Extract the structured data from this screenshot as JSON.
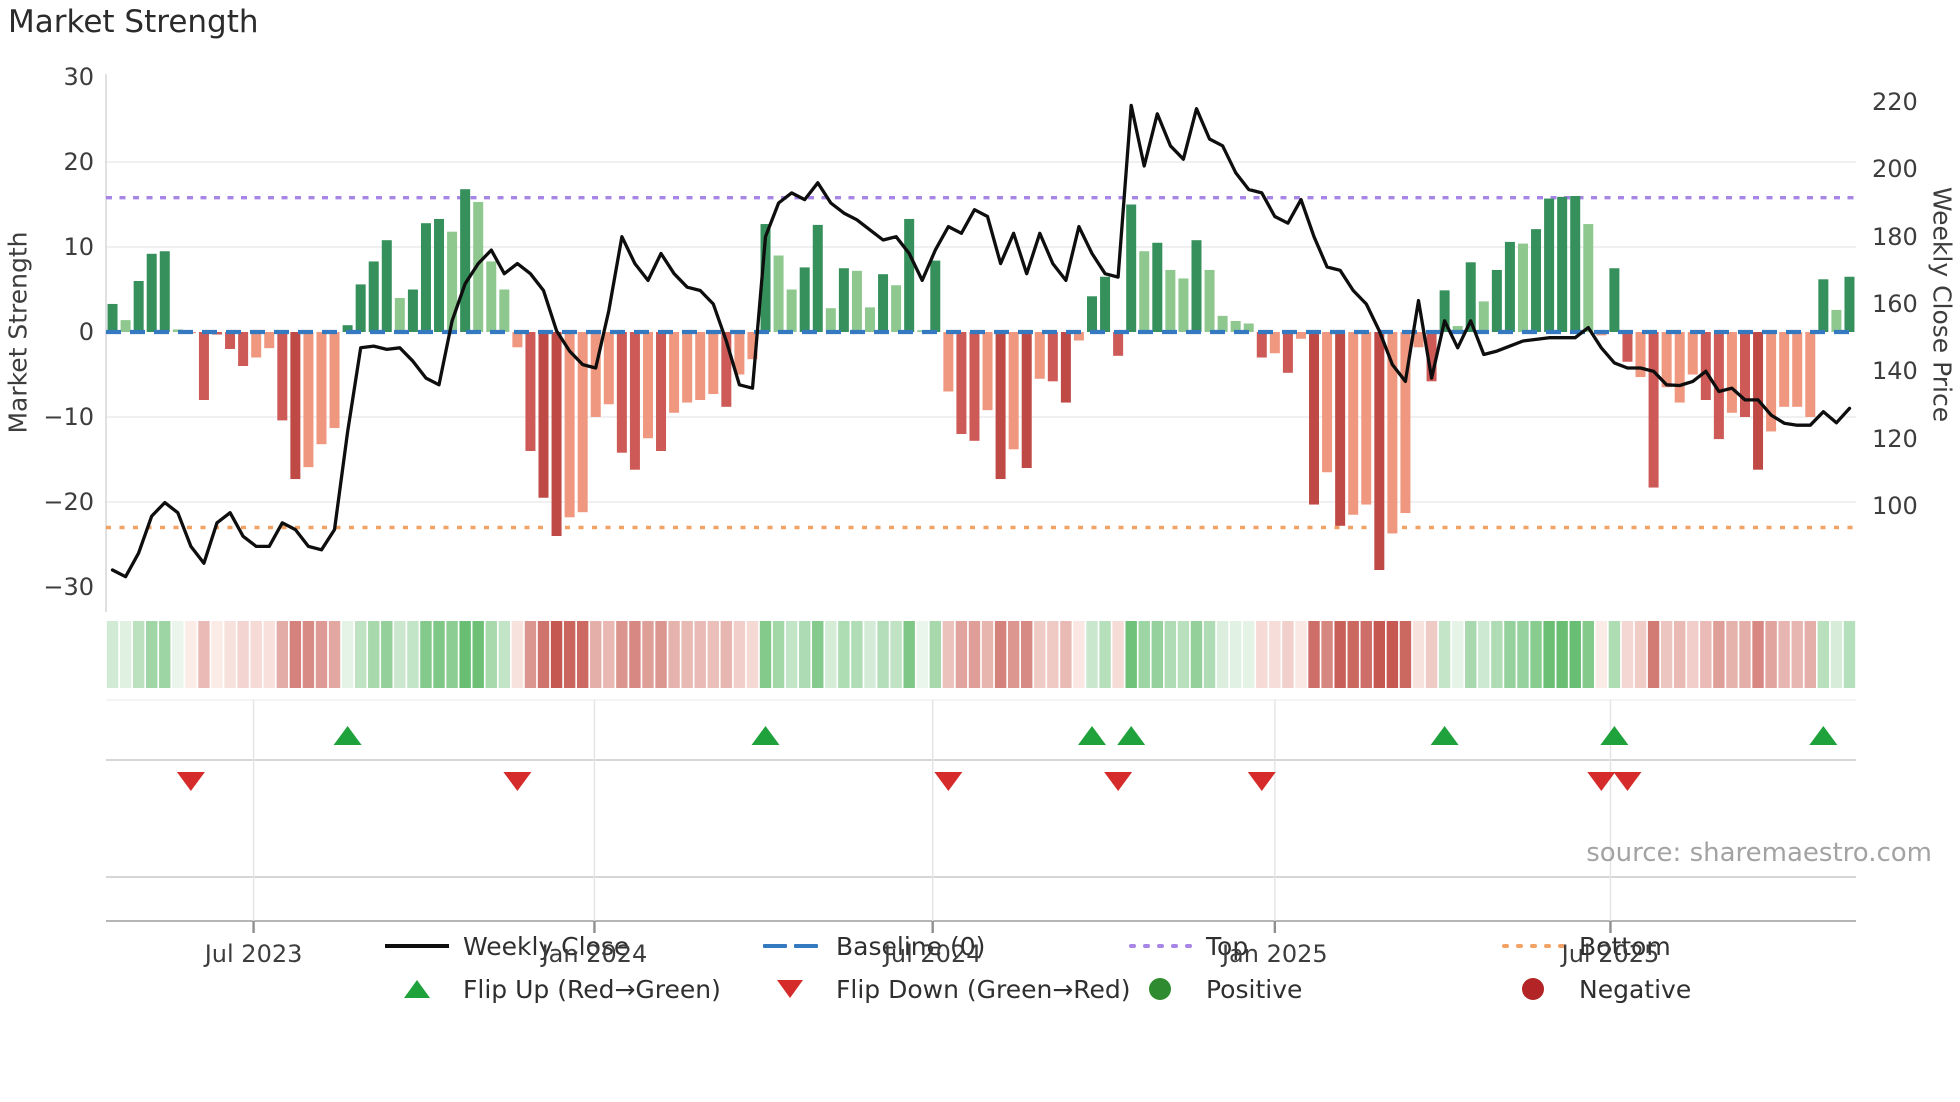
{
  "title": "Market Strength",
  "source": "source: sharemaestro.com",
  "chart_data": {
    "type": "bar+line",
    "left_axis": {
      "label": "Market Strength",
      "min": -30,
      "max": 30,
      "ticks": [
        30,
        20,
        10,
        0,
        -10,
        -20,
        -30
      ]
    },
    "right_axis": {
      "label": "Weekly Close Price",
      "min": 100,
      "max": 220,
      "ticks": [
        220,
        200,
        180,
        160,
        140,
        120,
        100
      ]
    },
    "x_ticks": [
      {
        "label": "Jul 2023",
        "week": 10.8
      },
      {
        "label": "Jan 2024",
        "week": 36.9
      },
      {
        "label": "Jul 2024",
        "week": 62.8
      },
      {
        "label": "Jan 2025",
        "week": 89.0
      },
      {
        "label": "Jul 2025",
        "week": 114.7
      }
    ],
    "reference_lines": {
      "baseline": {
        "label": "Baseline (0)",
        "value": 0
      },
      "top": {
        "label": "Top",
        "value": 15.8
      },
      "bottom": {
        "label": "Bottom",
        "value": -23
      }
    },
    "bars": {
      "values": [
        3.3,
        1.4,
        6,
        9.2,
        9.5,
        0.3,
        -0.1,
        -8,
        -0.3,
        -2,
        -4,
        -3,
        -1.9,
        -10.4,
        -17.3,
        -15.9,
        -13.2,
        -11.3,
        0.8,
        5.6,
        8.3,
        10.8,
        4,
        5,
        12.8,
        13.3,
        11.8,
        16.8,
        15.3,
        8.3,
        5,
        -1.8,
        -14,
        -19.5,
        -24,
        -21.8,
        -21.2,
        -10,
        -8.5,
        -14.2,
        -16.2,
        -12.5,
        -14,
        -9.5,
        -8.3,
        -8,
        -7.3,
        -8.8,
        -5,
        -3.2,
        12.7,
        9,
        5,
        7.6,
        12.6,
        2.8,
        7.5,
        7.2,
        2.9,
        6.8,
        5.5,
        13.3,
        0.2,
        8.4,
        -7,
        -12,
        -12.8,
        -9.2,
        -17.3,
        -13.8,
        -16,
        -5.5,
        -5.8,
        -8.3,
        -1,
        4.2,
        6.5,
        -2.8,
        15,
        9.5,
        10.5,
        7.3,
        6.3,
        10.8,
        7.3,
        1.9,
        1.3,
        1,
        -3,
        -2.5,
        -4.8,
        -0.8,
        -20.3,
        -16.5,
        -22.8,
        -21.5,
        -20.3,
        -28,
        -23.7,
        -21.3,
        -1.8,
        -5.8,
        4.9,
        0.7,
        8.2,
        3.6,
        7.3,
        10.6,
        10.4,
        12.1,
        15.7,
        15.9,
        16,
        12.7,
        -0.4,
        7.5,
        -3.5,
        -5.3,
        -18.3,
        -6.5,
        -8.3,
        -5,
        -8,
        -12.6,
        -9.5,
        -10,
        -16.2,
        -11.7,
        -8.8,
        -8.8,
        -10,
        6.2,
        2.6,
        6.5
      ],
      "color_classes": "d l d d d l s r r r r s s r x s s s d d d d l d d d l d l l l s r x x s s s s r r s r s s s s r s s d l l d d l d l l d l d l d s r r s x s x s r x s d d r d l d l l d l l l l r s r s x s x s s x s s s r d l d l d d l d d d d l s d r s r s s s r r s r x s s s s d l d"
    },
    "line": {
      "name": "Weekly Close",
      "values": [
        81,
        79,
        86,
        97,
        101,
        98,
        88,
        83,
        95,
        98,
        91,
        88,
        88,
        95,
        93,
        88,
        87,
        93,
        122,
        147,
        147.5,
        146.5,
        147,
        143,
        138,
        136,
        155,
        166,
        172,
        176,
        169,
        172,
        169,
        164,
        152,
        146,
        142,
        141,
        158,
        180,
        172,
        167,
        175,
        169,
        165,
        164,
        160,
        149,
        136,
        135,
        180,
        190,
        193,
        191,
        196,
        190,
        187,
        185,
        182,
        179,
        180,
        175,
        167,
        176,
        183,
        181,
        188,
        186,
        172,
        181,
        169,
        181,
        172,
        167,
        183,
        175,
        169,
        168,
        219,
        201,
        216.5,
        207,
        203,
        218,
        209,
        207,
        199,
        194,
        193,
        186,
        184,
        191,
        180,
        171,
        170,
        164,
        160,
        152,
        142,
        137,
        161,
        138,
        155,
        147,
        155,
        145,
        146,
        147.5,
        149,
        149.5,
        150,
        150,
        150,
        153,
        147,
        142.5,
        141,
        141,
        140,
        136,
        135.8,
        137,
        140,
        134,
        135,
        131.5,
        131.5,
        127,
        124.6,
        124,
        124,
        128,
        124.7,
        129
      ]
    },
    "flip_up": {
      "label": "Flip Up (Red→Green)",
      "weeks": [
        18,
        50,
        75,
        78,
        102,
        115,
        131
      ]
    },
    "flip_down": {
      "label": "Flip Down (Green→Red)",
      "weeks": [
        6,
        31,
        64,
        77,
        88,
        114,
        116
      ]
    },
    "colors": {
      "bar_dark_green": "#35905c",
      "bar_light_green": "#8ec88f",
      "bar_salmon": "#ef977f",
      "bar_red": "#cd5a56",
      "bar_dark_red": "#bf4a45",
      "line": "#0e0e0e",
      "baseline": "#3579c0",
      "top": "#a685e6",
      "bottom": "#f2a265",
      "flip_up": "#1fa23c",
      "flip_down": "#d62b2b",
      "positive": "#2e8b30",
      "negative": "#b22426"
    }
  },
  "legend": {
    "items": [
      {
        "label": "Weekly Close"
      },
      {
        "label": "Baseline (0)"
      },
      {
        "label": "Top"
      },
      {
        "label": "Bottom"
      },
      {
        "label": "Flip Up (Red→Green)"
      },
      {
        "label": "Flip Down (Green→Red)"
      },
      {
        "label": "Positive"
      },
      {
        "label": "Negative"
      }
    ]
  }
}
